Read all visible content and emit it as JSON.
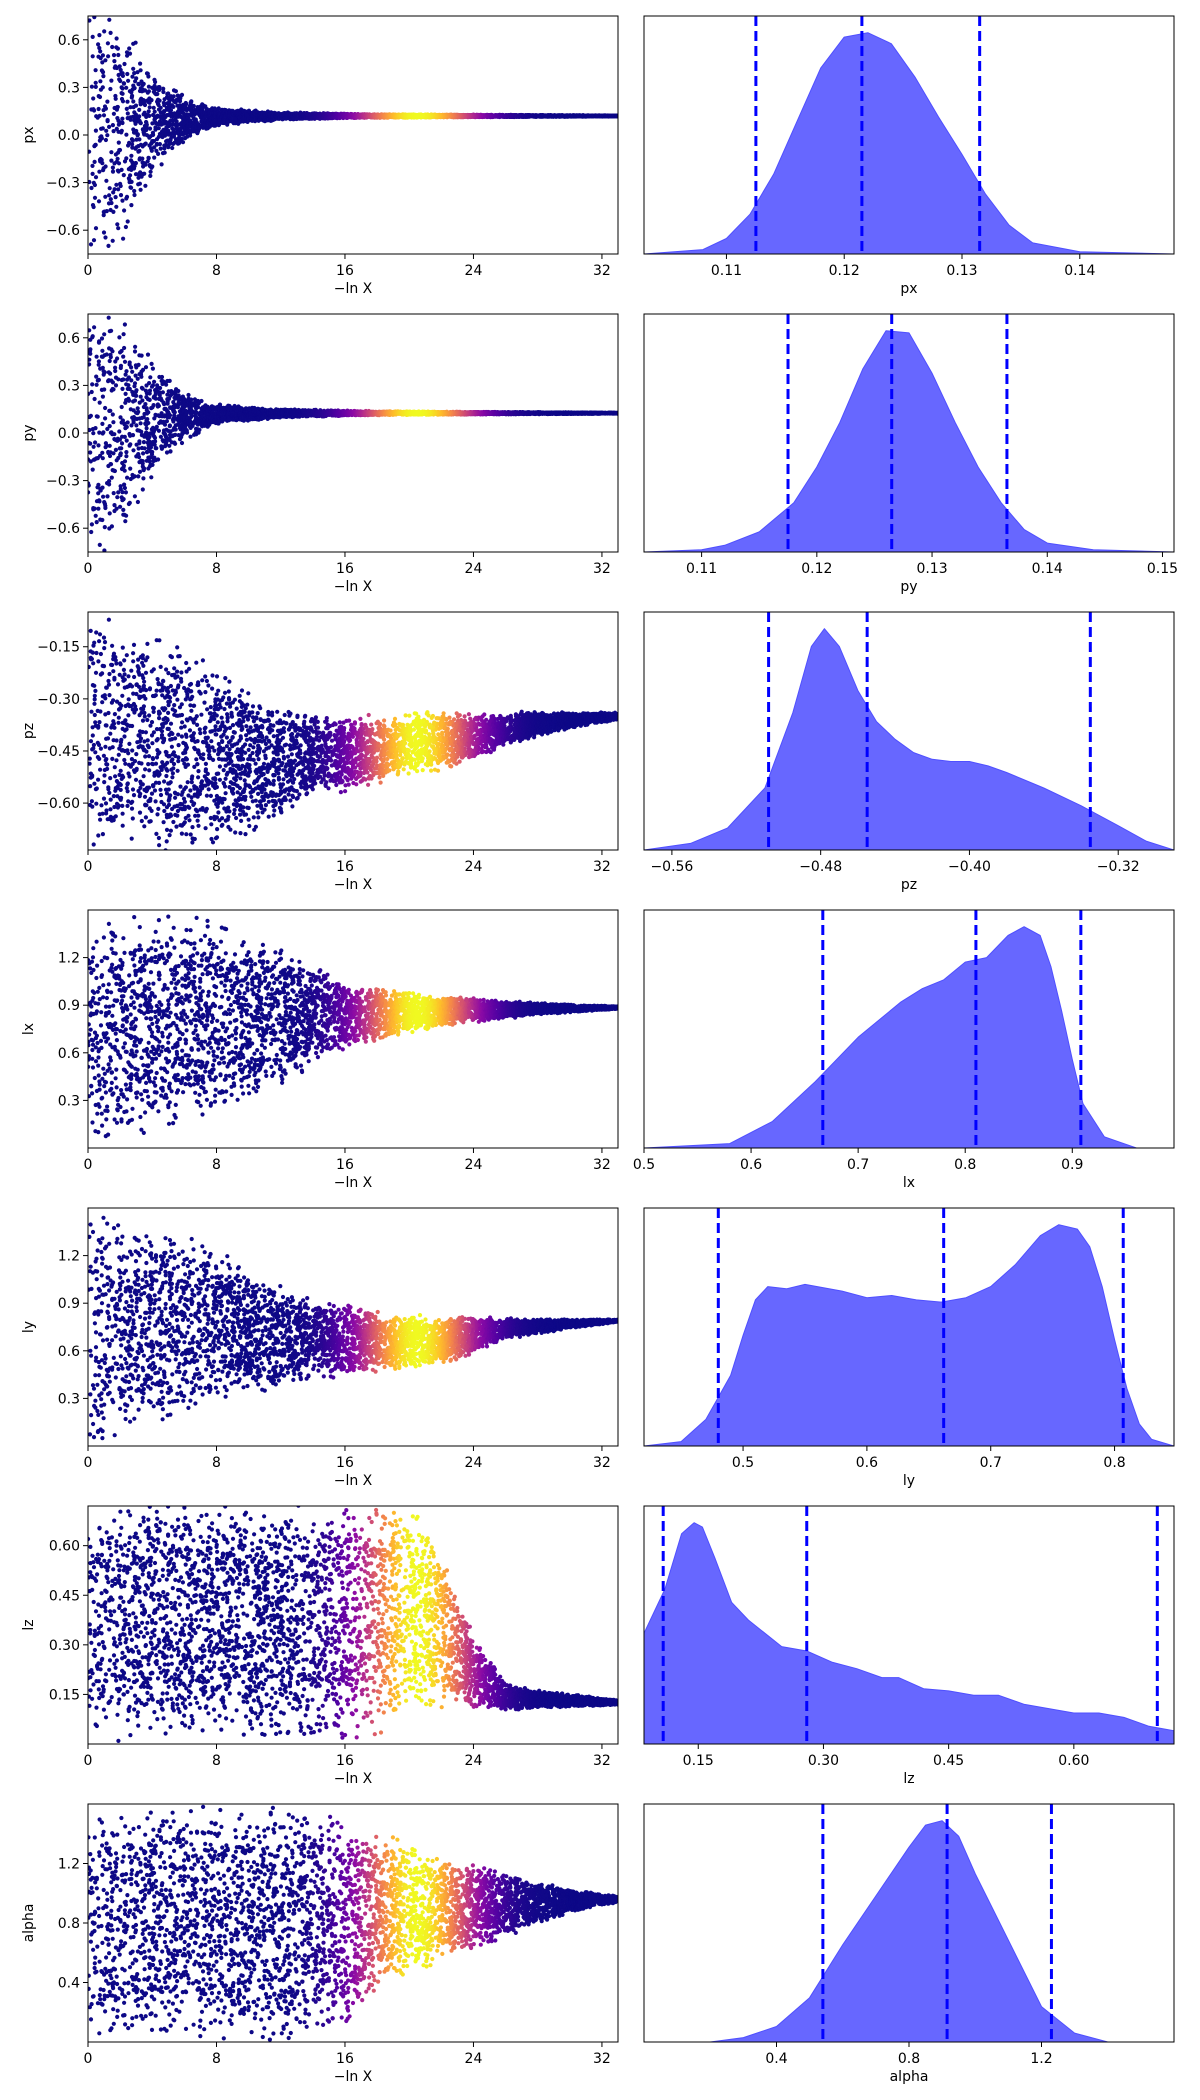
{
  "figure": {
    "background": "#ffffff"
  },
  "chart_data": [
    {
      "type": "scatter",
      "panel": "trace",
      "xlabel": "−ln X",
      "ylabel": "px",
      "xlim": [
        0,
        33
      ],
      "ylim": [
        -0.75,
        0.75
      ],
      "xticks": [
        0,
        8,
        16,
        24,
        32
      ],
      "yticks": [
        -0.6,
        -0.3,
        0.0,
        0.3,
        0.6
      ],
      "ytick_labels": [
        "−0.6",
        "−0.3",
        "0.0",
        "0.3",
        "0.6"
      ],
      "shape": {
        "center": [
          [
            0,
            0.0
          ],
          [
            4,
            0.08
          ],
          [
            8,
            0.115
          ],
          [
            14,
            0.12
          ],
          [
            33,
            0.12
          ]
        ],
        "halfwidth": [
          [
            0,
            0.9
          ],
          [
            2,
            0.75
          ],
          [
            4,
            0.35
          ],
          [
            6,
            0.15
          ],
          [
            8,
            0.06
          ],
          [
            12,
            0.025
          ],
          [
            18,
            0.012
          ],
          [
            33,
            0.003
          ]
        ]
      },
      "colormap": "plasma",
      "color_peak_x": 20.5,
      "color_width": 3.5
    },
    {
      "type": "area",
      "panel": "posterior",
      "xlabel": "px",
      "xlim": [
        0.103,
        0.148
      ],
      "xticks": [
        0.11,
        0.12,
        0.13,
        0.14
      ],
      "x": [
        0.103,
        0.108,
        0.11,
        0.112,
        0.114,
        0.116,
        0.118,
        0.12,
        0.122,
        0.124,
        0.126,
        0.128,
        0.13,
        0.132,
        0.134,
        0.136,
        0.14,
        0.148
      ],
      "density": [
        0.0,
        0.02,
        0.07,
        0.18,
        0.36,
        0.6,
        0.84,
        0.98,
        1.0,
        0.95,
        0.8,
        0.62,
        0.45,
        0.27,
        0.13,
        0.05,
        0.01,
        0.0
      ],
      "vlines": [
        0.1125,
        0.1215,
        0.1315
      ],
      "fill_color": "#6464ff",
      "line_color": "#0000ff"
    },
    {
      "type": "scatter",
      "panel": "trace",
      "xlabel": "−ln X",
      "ylabel": "py",
      "xlim": [
        0,
        33
      ],
      "ylim": [
        -0.75,
        0.75
      ],
      "xticks": [
        0,
        8,
        16,
        24,
        32
      ],
      "yticks": [
        -0.6,
        -0.3,
        0.0,
        0.3,
        0.6
      ],
      "ytick_labels": [
        "−0.6",
        "−0.3",
        "0.0",
        "0.3",
        "0.6"
      ],
      "shape": {
        "center": [
          [
            0,
            0.0
          ],
          [
            4,
            0.09
          ],
          [
            8,
            0.12
          ],
          [
            14,
            0.125
          ],
          [
            33,
            0.125
          ]
        ],
        "halfwidth": [
          [
            0,
            0.9
          ],
          [
            2,
            0.75
          ],
          [
            4,
            0.38
          ],
          [
            6,
            0.16
          ],
          [
            8,
            0.065
          ],
          [
            12,
            0.028
          ],
          [
            18,
            0.013
          ],
          [
            33,
            0.003
          ]
        ]
      },
      "colormap": "plasma",
      "color_peak_x": 20.5,
      "color_width": 3.5
    },
    {
      "type": "area",
      "panel": "posterior",
      "xlabel": "py",
      "xlim": [
        0.105,
        0.151
      ],
      "xticks": [
        0.11,
        0.12,
        0.13,
        0.14,
        0.15
      ],
      "x": [
        0.105,
        0.11,
        0.112,
        0.115,
        0.118,
        0.12,
        0.122,
        0.124,
        0.126,
        0.128,
        0.13,
        0.132,
        0.134,
        0.136,
        0.138,
        0.14,
        0.144,
        0.151
      ],
      "density": [
        0.0,
        0.01,
        0.03,
        0.09,
        0.22,
        0.38,
        0.58,
        0.82,
        0.99,
        0.98,
        0.8,
        0.58,
        0.38,
        0.22,
        0.1,
        0.04,
        0.01,
        0.0
      ],
      "vlines": [
        0.1175,
        0.1265,
        0.1365
      ],
      "fill_color": "#6464ff",
      "line_color": "#0000ff"
    },
    {
      "type": "scatter",
      "panel": "trace",
      "xlabel": "−ln X",
      "ylabel": "pz",
      "xlim": [
        0,
        33
      ],
      "ylim": [
        -0.735,
        -0.05
      ],
      "xticks": [
        0,
        8,
        16,
        24,
        32
      ],
      "yticks": [
        -0.6,
        -0.45,
        -0.3,
        -0.15
      ],
      "ytick_labels": [
        "−0.60",
        "−0.45",
        "−0.30",
        "−0.15"
      ],
      "shape": {
        "center": [
          [
            0,
            -0.4
          ],
          [
            10,
            -0.48
          ],
          [
            16,
            -0.46
          ],
          [
            20,
            -0.43
          ],
          [
            24,
            -0.41
          ],
          [
            28,
            -0.37
          ],
          [
            33,
            -0.35
          ]
        ],
        "halfwidth": [
          [
            0,
            0.36
          ],
          [
            6,
            0.3
          ],
          [
            10,
            0.22
          ],
          [
            14,
            0.12
          ],
          [
            18,
            0.1
          ],
          [
            22,
            0.09
          ],
          [
            26,
            0.05
          ],
          [
            30,
            0.025
          ],
          [
            33,
            0.01
          ]
        ]
      },
      "colormap": "plasma",
      "color_peak_x": 20.5,
      "color_width": 3.5
    },
    {
      "type": "area",
      "panel": "posterior",
      "xlabel": "pz",
      "xlim": [
        -0.575,
        -0.29
      ],
      "xticks": [
        -0.56,
        -0.48,
        -0.4,
        -0.32
      ],
      "xtick_labels": [
        "−0.56",
        "−0.48",
        "−0.40",
        "−0.32"
      ],
      "x": [
        -0.575,
        -0.55,
        -0.53,
        -0.51,
        -0.495,
        -0.485,
        -0.478,
        -0.47,
        -0.46,
        -0.45,
        -0.44,
        -0.43,
        -0.42,
        -0.41,
        -0.4,
        -0.39,
        -0.38,
        -0.36,
        -0.34,
        -0.32,
        -0.305,
        -0.29
      ],
      "density": [
        0.0,
        0.03,
        0.1,
        0.28,
        0.62,
        0.92,
        1.0,
        0.92,
        0.72,
        0.58,
        0.5,
        0.44,
        0.41,
        0.4,
        0.4,
        0.38,
        0.35,
        0.28,
        0.2,
        0.11,
        0.04,
        0.0
      ],
      "vlines": [
        -0.508,
        -0.455,
        -0.335
      ],
      "fill_color": "#6464ff",
      "line_color": "#0000ff"
    },
    {
      "type": "scatter",
      "panel": "trace",
      "xlabel": "−ln X",
      "ylabel": "lx",
      "xlim": [
        0,
        33
      ],
      "ylim": [
        0.0,
        1.5
      ],
      "xticks": [
        0,
        8,
        16,
        24,
        32
      ],
      "yticks": [
        0.3,
        0.6,
        0.9,
        1.2
      ],
      "ytick_labels": [
        "0.3",
        "0.6",
        "0.9",
        "1.2"
      ],
      "shape": {
        "center": [
          [
            0,
            0.72
          ],
          [
            8,
            0.82
          ],
          [
            14,
            0.84
          ],
          [
            18,
            0.84
          ],
          [
            24,
            0.87
          ],
          [
            33,
            0.885
          ]
        ],
        "halfwidth": [
          [
            0,
            0.75
          ],
          [
            8,
            0.65
          ],
          [
            12,
            0.45
          ],
          [
            16,
            0.22
          ],
          [
            20,
            0.13
          ],
          [
            24,
            0.08
          ],
          [
            28,
            0.04
          ],
          [
            33,
            0.008
          ]
        ]
      },
      "colormap": "plasma",
      "color_peak_x": 20.5,
      "color_width": 3.5
    },
    {
      "type": "area",
      "panel": "posterior",
      "xlabel": "lx",
      "xlim": [
        0.5,
        0.995
      ],
      "xticks": [
        0.5,
        0.6,
        0.7,
        0.8,
        0.9
      ],
      "x": [
        0.5,
        0.58,
        0.62,
        0.66,
        0.7,
        0.74,
        0.76,
        0.78,
        0.8,
        0.82,
        0.84,
        0.855,
        0.87,
        0.88,
        0.89,
        0.9,
        0.91,
        0.93,
        0.96,
        0.995
      ],
      "density": [
        0.0,
        0.02,
        0.12,
        0.3,
        0.5,
        0.66,
        0.72,
        0.76,
        0.84,
        0.86,
        0.96,
        1.0,
        0.96,
        0.82,
        0.62,
        0.4,
        0.2,
        0.05,
        0.0,
        0.0
      ],
      "vlines": [
        0.667,
        0.81,
        0.908
      ],
      "fill_color": "#6464ff",
      "line_color": "#0000ff"
    },
    {
      "type": "scatter",
      "panel": "trace",
      "xlabel": "−ln X",
      "ylabel": "ly",
      "xlim": [
        0,
        33
      ],
      "ylim": [
        0.0,
        1.5
      ],
      "xticks": [
        0,
        8,
        16,
        24,
        32
      ],
      "yticks": [
        0.3,
        0.6,
        0.9,
        1.2
      ],
      "ytick_labels": [
        "0.3",
        "0.6",
        "0.9",
        "1.2"
      ],
      "shape": {
        "center": [
          [
            0,
            0.72
          ],
          [
            8,
            0.76
          ],
          [
            12,
            0.68
          ],
          [
            16,
            0.66
          ],
          [
            22,
            0.66
          ],
          [
            26,
            0.74
          ],
          [
            33,
            0.79
          ]
        ],
        "halfwidth": [
          [
            0,
            0.75
          ],
          [
            6,
            0.6
          ],
          [
            10,
            0.4
          ],
          [
            14,
            0.26
          ],
          [
            18,
            0.2
          ],
          [
            22,
            0.16
          ],
          [
            26,
            0.07
          ],
          [
            30,
            0.03
          ],
          [
            33,
            0.008
          ]
        ]
      },
      "colormap": "plasma",
      "color_peak_x": 20.5,
      "color_width": 3.5
    },
    {
      "type": "area",
      "panel": "posterior",
      "xlabel": "ly",
      "xlim": [
        0.42,
        0.848
      ],
      "xticks": [
        0.5,
        0.6,
        0.7,
        0.8
      ],
      "x": [
        0.42,
        0.45,
        0.47,
        0.49,
        0.5,
        0.51,
        0.52,
        0.535,
        0.55,
        0.58,
        0.6,
        0.62,
        0.64,
        0.66,
        0.68,
        0.7,
        0.72,
        0.74,
        0.755,
        0.77,
        0.78,
        0.79,
        0.8,
        0.81,
        0.82,
        0.83,
        0.848
      ],
      "density": [
        0.0,
        0.02,
        0.12,
        0.32,
        0.5,
        0.66,
        0.72,
        0.71,
        0.73,
        0.7,
        0.67,
        0.68,
        0.66,
        0.65,
        0.67,
        0.72,
        0.82,
        0.95,
        1.0,
        0.98,
        0.9,
        0.72,
        0.48,
        0.26,
        0.1,
        0.03,
        0.0
      ],
      "vlines": [
        0.48,
        0.662,
        0.807
      ],
      "fill_color": "#6464ff",
      "line_color": "#0000ff"
    },
    {
      "type": "scatter",
      "panel": "trace",
      "xlabel": "−ln X",
      "ylabel": "lz",
      "xlim": [
        0,
        33
      ],
      "ylim": [
        0.0,
        0.72
      ],
      "xticks": [
        0,
        8,
        16,
        24,
        32
      ],
      "yticks": [
        0.15,
        0.3,
        0.45,
        0.6
      ],
      "ytick_labels": [
        "0.15",
        "0.30",
        "0.45",
        "0.60"
      ],
      "shape": {
        "center": [
          [
            0,
            0.37
          ],
          [
            18,
            0.37
          ],
          [
            20,
            0.4
          ],
          [
            22,
            0.35
          ],
          [
            24,
            0.22
          ],
          [
            26,
            0.14
          ],
          [
            33,
            0.125
          ]
        ],
        "halfwidth": [
          [
            0,
            0.37
          ],
          [
            18,
            0.37
          ],
          [
            20,
            0.32
          ],
          [
            22,
            0.25
          ],
          [
            24,
            0.12
          ],
          [
            26,
            0.04
          ],
          [
            30,
            0.02
          ],
          [
            33,
            0.008
          ]
        ]
      },
      "colormap": "plasma",
      "color_peak_x": 20.5,
      "color_width": 3.5
    },
    {
      "type": "area",
      "panel": "posterior",
      "xlabel": "lz",
      "xlim": [
        0.085,
        0.72
      ],
      "xticks": [
        0.15,
        0.3,
        0.45,
        0.6
      ],
      "xtick_labels": [
        "0.15",
        "0.30",
        "0.45",
        "0.60"
      ],
      "x": [
        0.085,
        0.11,
        0.13,
        0.145,
        0.155,
        0.17,
        0.19,
        0.21,
        0.23,
        0.25,
        0.28,
        0.31,
        0.34,
        0.37,
        0.39,
        0.42,
        0.45,
        0.48,
        0.51,
        0.54,
        0.57,
        0.6,
        0.63,
        0.66,
        0.69,
        0.72
      ],
      "density": [
        0.5,
        0.7,
        0.95,
        1.0,
        0.98,
        0.84,
        0.64,
        0.56,
        0.5,
        0.44,
        0.42,
        0.37,
        0.34,
        0.3,
        0.3,
        0.25,
        0.24,
        0.22,
        0.22,
        0.18,
        0.16,
        0.14,
        0.14,
        0.12,
        0.08,
        0.06
      ],
      "vlines": [
        0.108,
        0.28,
        0.7
      ],
      "fill_color": "#6464ff",
      "line_color": "#0000ff"
    },
    {
      "type": "scatter",
      "panel": "trace",
      "xlabel": "−ln X",
      "ylabel": "alpha",
      "xlim": [
        0,
        33
      ],
      "ylim": [
        0.0,
        1.6
      ],
      "xticks": [
        0,
        8,
        16,
        24,
        32
      ],
      "yticks": [
        0.4,
        0.8,
        1.2
      ],
      "ytick_labels": [
        "0.4",
        "0.8",
        "1.2"
      ],
      "shape": {
        "center": [
          [
            0,
            0.8
          ],
          [
            16,
            0.8
          ],
          [
            18,
            0.9
          ],
          [
            22,
            0.9
          ],
          [
            26,
            0.92
          ],
          [
            30,
            0.95
          ],
          [
            33,
            0.96
          ]
        ],
        "halfwidth": [
          [
            0,
            0.8
          ],
          [
            16,
            0.8
          ],
          [
            18,
            0.55
          ],
          [
            22,
            0.38
          ],
          [
            26,
            0.22
          ],
          [
            30,
            0.08
          ],
          [
            33,
            0.02
          ]
        ]
      },
      "colormap": "plasma",
      "color_peak_x": 20.5,
      "color_width": 3.5
    },
    {
      "type": "area",
      "panel": "posterior",
      "xlabel": "alpha",
      "xlim": [
        0.0,
        1.6
      ],
      "xticks": [
        0.4,
        0.8,
        1.2
      ],
      "x": [
        0.0,
        0.2,
        0.3,
        0.4,
        0.5,
        0.6,
        0.7,
        0.8,
        0.85,
        0.9,
        0.95,
        1.0,
        1.1,
        1.2,
        1.3,
        1.4,
        1.6
      ],
      "density": [
        0.0,
        0.0,
        0.02,
        0.07,
        0.2,
        0.44,
        0.66,
        0.88,
        0.98,
        1.0,
        0.93,
        0.76,
        0.46,
        0.16,
        0.04,
        0.0,
        0.0
      ],
      "vlines": [
        0.54,
        0.915,
        1.23
      ],
      "fill_color": "#6464ff",
      "line_color": "#0000ff"
    }
  ]
}
